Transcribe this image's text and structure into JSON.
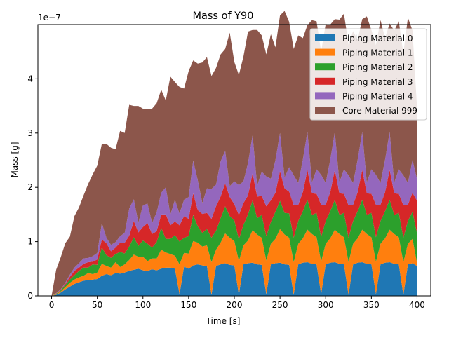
{
  "chart_data": {
    "type": "area",
    "stacked": true,
    "title": "Mass of Y90",
    "xlabel": "Time [s]",
    "ylabel": "Mass [g]",
    "offset_text": "1e−7",
    "xlim": [
      -15,
      415
    ],
    "ylim": [
      0,
      5
    ],
    "x_ticks": [
      0,
      50,
      100,
      150,
      200,
      250,
      300,
      350,
      400
    ],
    "x_tick_labels": [
      "0",
      "50",
      "100",
      "150",
      "200",
      "250",
      "300",
      "350",
      "400"
    ],
    "y_ticks": [
      0,
      1,
      2,
      3,
      4
    ],
    "y_tick_labels": [
      "0",
      "1",
      "2",
      "3",
      "4"
    ],
    "grid": false,
    "legend_position": "top-right",
    "x": [
      0,
      5,
      10,
      15,
      20,
      25,
      30,
      35,
      40,
      45,
      50,
      55,
      60,
      65,
      70,
      75,
      80,
      85,
      90,
      95,
      100,
      105,
      110,
      115,
      120,
      125,
      130,
      135,
      140,
      145,
      150,
      155,
      160,
      165,
      170,
      175,
      180,
      185,
      190,
      195,
      200,
      205,
      210,
      215,
      220,
      225,
      230,
      235,
      240,
      245,
      250,
      255,
      260,
      265,
      270,
      275,
      280,
      285,
      290,
      295,
      300,
      305,
      310,
      315,
      320,
      325,
      330,
      335,
      340,
      345,
      350,
      355,
      360,
      365,
      370,
      375,
      380,
      385,
      390,
      395,
      400
    ],
    "series": [
      {
        "name": "Piping Material 0",
        "color": "#1f77b4",
        "values": [
          0,
          0.02,
          0.06,
          0.12,
          0.17,
          0.22,
          0.25,
          0.28,
          0.29,
          0.3,
          0.31,
          0.37,
          0.4,
          0.38,
          0.42,
          0.41,
          0.43,
          0.46,
          0.48,
          0.5,
          0.47,
          0.46,
          0.49,
          0.47,
          0.5,
          0.52,
          0.52,
          0.5,
          0.03,
          0.54,
          0.5,
          0.56,
          0.58,
          0.56,
          0.55,
          0.02,
          0.55,
          0.58,
          0.6,
          0.57,
          0.56,
          0.02,
          0.58,
          0.6,
          0.61,
          0.58,
          0.57,
          0.03,
          0.58,
          0.6,
          0.61,
          0.58,
          0.57,
          0.02,
          0.58,
          0.61,
          0.62,
          0.59,
          0.58,
          0.03,
          0.58,
          0.61,
          0.62,
          0.59,
          0.58,
          0.02,
          0.58,
          0.61,
          0.62,
          0.59,
          0.58,
          0.03,
          0.58,
          0.61,
          0.62,
          0.59,
          0.58,
          0.02,
          0.58,
          0.6,
          0.55
        ]
      },
      {
        "name": "Piping Material 1",
        "color": "#ff7f0e",
        "values": [
          0,
          0.01,
          0.02,
          0.04,
          0.07,
          0.08,
          0.09,
          0.09,
          0.13,
          0.1,
          0.12,
          0.22,
          0.15,
          0.14,
          0.2,
          0.12,
          0.15,
          0.2,
          0.28,
          0.22,
          0.25,
          0.18,
          0.2,
          0.22,
          0.35,
          0.28,
          0.25,
          0.24,
          0.55,
          0.25,
          0.28,
          0.45,
          0.4,
          0.35,
          0.38,
          0.6,
          0.3,
          0.4,
          0.55,
          0.5,
          0.45,
          0.62,
          0.35,
          0.42,
          0.6,
          0.55,
          0.5,
          0.62,
          0.38,
          0.45,
          0.62,
          0.55,
          0.5,
          0.6,
          0.38,
          0.45,
          0.6,
          0.55,
          0.5,
          0.6,
          0.38,
          0.45,
          0.6,
          0.55,
          0.5,
          0.6,
          0.38,
          0.45,
          0.6,
          0.55,
          0.5,
          0.6,
          0.38,
          0.45,
          0.6,
          0.55,
          0.5,
          0.6,
          0.38,
          0.45,
          0.05
        ]
      },
      {
        "name": "Piping Material 2",
        "color": "#2ca02c",
        "values": [
          0,
          0.01,
          0.02,
          0.04,
          0.06,
          0.08,
          0.12,
          0.15,
          0.1,
          0.18,
          0.14,
          0.3,
          0.2,
          0.18,
          0.15,
          0.28,
          0.2,
          0.25,
          0.32,
          0.2,
          0.3,
          0.32,
          0.2,
          0.3,
          0.4,
          0.25,
          0.28,
          0.38,
          0.42,
          0.28,
          0.32,
          0.48,
          0.3,
          0.25,
          0.3,
          0.45,
          0.35,
          0.45,
          0.5,
          0.4,
          0.38,
          0.4,
          0.38,
          0.48,
          0.55,
          0.3,
          0.42,
          0.45,
          0.4,
          0.5,
          0.52,
          0.4,
          0.45,
          0.45,
          0.42,
          0.5,
          0.55,
          0.35,
          0.45,
          0.45,
          0.42,
          0.5,
          0.55,
          0.35,
          0.45,
          0.45,
          0.42,
          0.5,
          0.55,
          0.35,
          0.45,
          0.45,
          0.42,
          0.5,
          0.55,
          0.35,
          0.45,
          0.45,
          0.42,
          0.5,
          0.55
        ]
      },
      {
        "name": "Piping Material 3",
        "color": "#d62728",
        "values": [
          0,
          0.005,
          0.01,
          0.02,
          0.05,
          0.08,
          0.06,
          0.07,
          0.1,
          0.05,
          0.1,
          0.15,
          0.22,
          0.12,
          0.12,
          0.17,
          0.2,
          0.2,
          0.3,
          0.25,
          0.25,
          0.38,
          0.25,
          0.2,
          0.25,
          0.45,
          0.25,
          0.25,
          0.3,
          0.4,
          0.32,
          0.4,
          0.3,
          0.35,
          0.3,
          0.35,
          0.45,
          0.4,
          0.42,
          0.35,
          0.3,
          0.45,
          0.4,
          0.35,
          0.5,
          0.4,
          0.35,
          0.55,
          0.4,
          0.35,
          0.55,
          0.45,
          0.4,
          0.6,
          0.3,
          0.35,
          0.55,
          0.4,
          0.35,
          0.6,
          0.3,
          0.35,
          0.55,
          0.4,
          0.35,
          0.6,
          0.3,
          0.35,
          0.55,
          0.4,
          0.35,
          0.6,
          0.3,
          0.35,
          0.55,
          0.4,
          0.35,
          0.6,
          0.3,
          0.35,
          0.6
        ]
      },
      {
        "name": "Piping Material 4",
        "color": "#9467bd",
        "values": [
          0,
          0.005,
          0.01,
          0.02,
          0.04,
          0.06,
          0.08,
          0.1,
          0.08,
          0.1,
          0.12,
          0.3,
          0.1,
          0.12,
          0.1,
          0.12,
          0.18,
          0.5,
          0.4,
          0.18,
          0.4,
          0.36,
          0.2,
          0.35,
          0.4,
          0.5,
          0.2,
          0.4,
          0.22,
          0.3,
          0.4,
          0.6,
          0.55,
          0.2,
          0.45,
          0.55,
          0.4,
          0.65,
          0.6,
          0.2,
          0.42,
          0.55,
          0.4,
          0.6,
          0.7,
          0.2,
          0.45,
          0.55,
          0.4,
          0.6,
          0.7,
          0.2,
          0.45,
          0.55,
          0.4,
          0.6,
          0.7,
          0.2,
          0.45,
          0.55,
          0.4,
          0.6,
          0.7,
          0.2,
          0.45,
          0.55,
          0.4,
          0.6,
          0.7,
          0.2,
          0.45,
          0.55,
          0.4,
          0.6,
          0.7,
          0.2,
          0.45,
          0.55,
          0.4,
          0.6,
          0.4
        ]
      },
      {
        "name": "Core Material 999",
        "color": "#8c564b",
        "values": [
          0,
          0.43,
          0.59,
          0.73,
          0.7,
          0.95,
          1.03,
          1.16,
          1.36,
          1.51,
          1.61,
          1.46,
          1.73,
          1.79,
          1.71,
          1.94,
          1.84,
          1.91,
          1.72,
          2.15,
          1.78,
          1.75,
          2.11,
          2.01,
          1.9,
          1.6,
          2.54,
          2.17,
          2.33,
          2.05,
          2.32,
          1.85,
          2.15,
          2.59,
          2.42,
          2.08,
          2.15,
          1.97,
          1.88,
          2.83,
          2.2,
          2.03,
          2.3,
          2.42,
          1.94,
          2.87,
          2.51,
          2.25,
          2.66,
          2.08,
          2.17,
          3.07,
          2.68,
          2.33,
          2.72,
          2.24,
          1.97,
          2.99,
          2.73,
          2.27,
          2.93,
          2.49,
          2.08,
          3.0,
          2.87,
          2.41,
          2.8,
          2.21,
          2.08,
          3.06,
          2.57,
          2.39,
          3.0,
          2.24,
          2.0,
          2.8,
          2.73,
          2.25,
          3.05,
          2.39,
          1.3
        ]
      }
    ]
  }
}
